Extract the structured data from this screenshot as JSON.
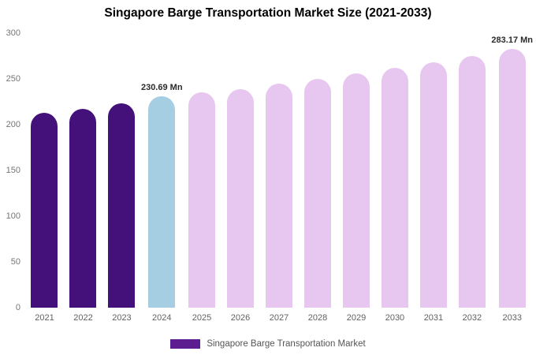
{
  "title": "Singapore Barge Transportation Market Size (2021-2033)",
  "legend": {
    "label": "Singapore Barge Transportation Market",
    "swatch_color": "#5c1d91"
  },
  "colors": {
    "historical_bar": "#44107a",
    "current_bar": "#a6cee3",
    "forecast_bar": "#e7c7ef",
    "background": "#ffffff",
    "tick_text": "#757575",
    "annotation_text": "#2b2b2b"
  },
  "chart_data": {
    "type": "bar",
    "title": "Singapore Barge Transportation Market Size (2021-2033)",
    "categories": [
      "2021",
      "2022",
      "2023",
      "2024",
      "2025",
      "2026",
      "2027",
      "2028",
      "2029",
      "2030",
      "2031",
      "2032",
      "2033"
    ],
    "values": [
      213,
      217,
      223,
      230.69,
      235,
      239,
      245,
      250,
      256,
      262,
      268,
      275,
      283.17
    ],
    "bar_colors": [
      "#44107a",
      "#44107a",
      "#44107a",
      "#a6cee3",
      "#e7c7ef",
      "#e7c7ef",
      "#e7c7ef",
      "#e7c7ef",
      "#e7c7ef",
      "#e7c7ef",
      "#e7c7ef",
      "#e7c7ef",
      "#e7c7ef"
    ],
    "annotations": [
      {
        "index": 3,
        "text": "230.69 Mn"
      },
      {
        "index": 12,
        "text": "283.17 Mn"
      }
    ],
    "xlabel": "",
    "ylabel": "",
    "ylim": [
      0,
      300
    ],
    "yticks": [
      0,
      50,
      100,
      150,
      200,
      250,
      300
    ],
    "grid": false,
    "legend_position": "bottom"
  }
}
